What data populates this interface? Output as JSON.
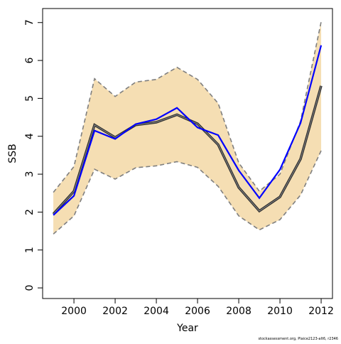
{
  "chart_data": {
    "type": "line",
    "xlabel": "Year",
    "ylabel": "SSB",
    "footnote": "stockassessment.org, Plaice2123-alt6, r2346",
    "x": [
      1999,
      2000,
      2001,
      2002,
      2003,
      2004,
      2005,
      2006,
      2007,
      2008,
      2009,
      2010,
      2011,
      2012
    ],
    "band": {
      "upper": [
        2.52,
        3.2,
        5.52,
        5.05,
        5.43,
        5.5,
        5.82,
        5.5,
        4.87,
        3.3,
        2.55,
        3.0,
        4.4,
        7.02
      ],
      "lower": [
        1.42,
        1.9,
        3.13,
        2.87,
        3.17,
        3.22,
        3.33,
        3.18,
        2.68,
        1.9,
        1.53,
        1.8,
        2.45,
        3.62
      ],
      "color": "#f5deb3",
      "line_color": "#7f7f7f"
    },
    "series": [
      {
        "color": "#303030",
        "values": [
          1.95,
          2.55,
          4.3,
          3.97,
          4.3,
          4.37,
          4.57,
          4.33,
          3.78,
          2.65,
          2.03,
          2.4,
          3.4,
          5.33
        ]
      },
      {
        "color": "#0000ff",
        "values": [
          1.92,
          2.43,
          4.15,
          3.93,
          4.32,
          4.45,
          4.75,
          4.23,
          4.03,
          3.1,
          2.37,
          3.12,
          4.35,
          6.4
        ]
      }
    ],
    "xlim": [
      1998.48,
      2012.55
    ],
    "ylim": [
      -0.28,
      7.37
    ],
    "xticks": [
      2000,
      2002,
      2004,
      2006,
      2008,
      2010,
      2012
    ],
    "yticks": [
      0,
      1,
      2,
      3,
      4,
      5,
      6,
      7
    ]
  }
}
